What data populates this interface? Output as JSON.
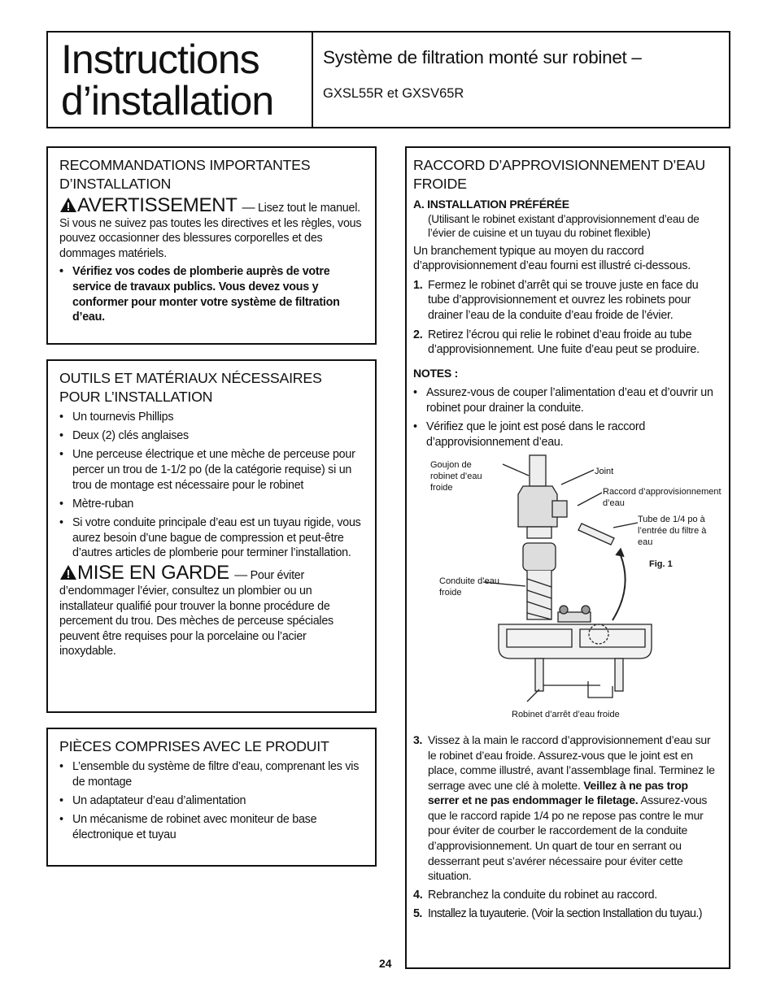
{
  "header": {
    "title": [
      "Instructions",
      "d’installation"
    ],
    "subtitle": "Système de filtration monté sur robinet –",
    "models": "GXSL55R et GXSV65R"
  },
  "recommendations": {
    "heading": "RECOMMANDATIONS IMPORTANTES D’INSTALLATION",
    "warning_label": "AVERTISSEMENT",
    "warning_dash": "—",
    "warning_text": "Lisez tout le manuel. Si vous ne suivez pas toutes les directives et les règles, vous pouvez occasionner des blessures corporelles et des dommages matériels.",
    "bullets": [
      "Vérifiez vos codes de plomberie auprès de votre service de travaux publics. Vous devez vous y conformer pour monter votre système de filtration d’eau."
    ]
  },
  "tools": {
    "heading": "OUTILS ET MATÉRIAUX NÉCESSAIRES POUR L’INSTALLATION",
    "bullets": [
      "Un tournevis Phillips",
      "Deux (2) clés anglaises",
      "Une perceuse électrique et une mèche de perceuse pour percer un trou de 1-1/2 po (de la catégorie requise) si un trou de montage est nécessaire pour le robinet",
      "Mètre-ruban",
      "Si votre conduite principale d’eau est un tuyau rigide, vous aurez besoin d’une bague de compression et peut-être d’autres articles de plomberie pour terminer l’installation."
    ],
    "caution_label": "MISE EN GARDE",
    "caution_dash": "—",
    "caution_text": "Pour éviter d’endommager l’évier, consultez un plombier ou un installateur qualifié pour trouver la bonne procédure de percement du trou. Des mèches de perceuse spéciales peuvent être requises pour la porcelaine ou l’acier inoxydable."
  },
  "parts": {
    "heading": "PIÈCES COMPRISES AVEC LE PRODUIT",
    "bullets": [
      "L’ensemble du système de filtre d’eau, comprenant les vis de montage",
      "Un adaptateur d’eau d’alimentation",
      "Un mécanisme de robinet avec moniteur de base électronique et tuyau"
    ]
  },
  "water_supply": {
    "heading": "RACCORD D’APPROVISIONNEMENT D’EAU FROIDE",
    "option": "A. INSTALLATION PRÉFÉRÉE",
    "option_note": "(Utilisant le robinet existant d’approvisionnement d’eau de l’évier de cuisine et un tuyau du robinet flexible)",
    "intro": "Un branchement typique au moyen du raccord d’approvisionnement d’eau fourni est illustré ci-dessous.",
    "steps_a": [
      {
        "number": "1.",
        "text": "Fermez le robinet d’arrêt qui se trouve juste en face du tube d’approvisionnement et ouvrez les robinets pour drainer l’eau de la conduite d’eau froide de l’évier."
      },
      {
        "number": "2.",
        "text": "Retirez l’écrou qui relie le robinet d’eau froide au tube d’approvisionnement. Une fuite d’eau peut se produire."
      }
    ],
    "notes_label": "NOTES :",
    "notes": [
      "Assurez-vous de couper l’alimentation d’eau et d’ouvrir un robinet pour drainer la conduite.",
      "Vérifiez que le joint est posé dans le raccord d’approvisionnement d’eau."
    ],
    "figure": {
      "stud": "Goujon de robinet d’eau froide",
      "gasket": "Joint",
      "fitting": "Raccord d’approvisionnement d’eau",
      "tube": "Tube de 1/4 po à l’entrée du filtre à eau",
      "line": "Conduite d’eau froide",
      "valve": "Robinet d’arrêt d’eau froide",
      "caption": "Fig. 1"
    },
    "steps_b": [
      {
        "number": "3.",
        "text": "Vissez à la main le raccord d’approvisionnement d’eau sur le robinet d’eau froide. Assurez-vous que le joint est en place, comme illustré, avant l’assemblage final. Terminez le serrage avec une clé à molette.",
        "emphasis": "Veillez à ne pas trop serrer et ne pas endommager le filetage.",
        "text_end": "Assurez-vous que le raccord rapide 1/4 po ne repose pas contre le mur pour éviter de courber le raccordement de la conduite d’approvisionnement. Un quart de tour en serrant ou desserrant peut s’avérer nécessaire pour éviter cette situation."
      },
      {
        "number": "4.",
        "text": "Rebranchez la conduite du robinet au raccord."
      },
      {
        "number": "5.",
        "text": "Installez la tuyauterie. (Voir la section Installation du tuyau.)"
      }
    ]
  },
  "page_number": "24"
}
